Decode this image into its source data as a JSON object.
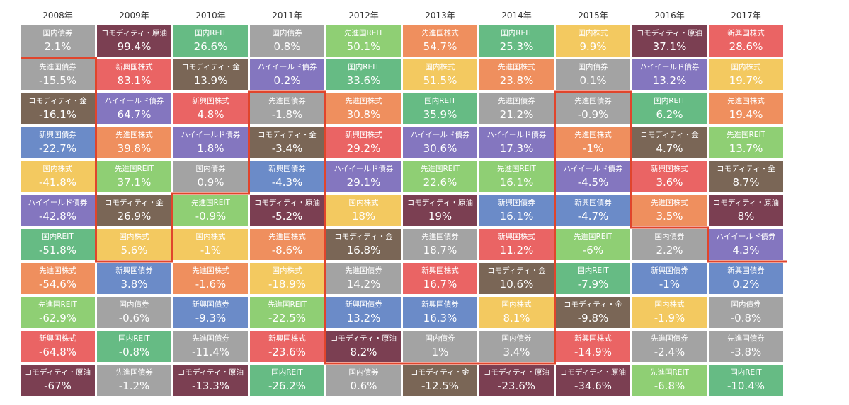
{
  "chart_data": {
    "type": "table",
    "years": [
      "2008年",
      "2009年",
      "2010年",
      "2011年",
      "2012年",
      "2013年",
      "2014年",
      "2015年",
      "2016年",
      "2017年"
    ],
    "asset_colors": {
      "国内債券": "#a3a3a3",
      "先進国債券": "#a3a3a3",
      "コモディティ・原油": "#7b3f52",
      "コモディティ・金": "#7a6656",
      "国内REIT": "#66bb84",
      "先進国REIT": "#8fcf74",
      "先進国株式": "#ef8f5e",
      "国内株式": "#f3c960",
      "新興国株式": "#ea6464",
      "新興国債券": "#6b8bc8",
      "ハイイールド債券": "#8476bf"
    },
    "columns": [
      [
        {
          "asset": "国内債券",
          "value": "2.1%"
        },
        {
          "asset": "先進国債券",
          "value": "-15.5%"
        },
        {
          "asset": "コモディティ・金",
          "value": "-16.1%"
        },
        {
          "asset": "新興国債券",
          "value": "-22.7%"
        },
        {
          "asset": "国内株式",
          "value": "-41.8%"
        },
        {
          "asset": "ハイイールド債券",
          "value": "-42.8%"
        },
        {
          "asset": "国内REIT",
          "value": "-51.8%"
        },
        {
          "asset": "先進国株式",
          "value": "-54.6%"
        },
        {
          "asset": "先進国REIT",
          "value": "-62.9%"
        },
        {
          "asset": "新興国株式",
          "value": "-64.8%"
        },
        {
          "asset": "コモディティ・原油",
          "value": "-67%"
        }
      ],
      [
        {
          "asset": "コモディティ・原油",
          "value": "99.4%"
        },
        {
          "asset": "新興国株式",
          "value": "83.1%"
        },
        {
          "asset": "ハイイールド債券",
          "value": "64.7%"
        },
        {
          "asset": "先進国株式",
          "value": "39.8%"
        },
        {
          "asset": "先進国REIT",
          "value": "37.1%"
        },
        {
          "asset": "コモディティ・金",
          "value": "26.9%"
        },
        {
          "asset": "国内株式",
          "value": "5.6%"
        },
        {
          "asset": "新興国債券",
          "value": "3.8%"
        },
        {
          "asset": "国内債券",
          "value": "-0.6%"
        },
        {
          "asset": "国内REIT",
          "value": "-0.8%"
        },
        {
          "asset": "先進国債券",
          "value": "-1.2%"
        }
      ],
      [
        {
          "asset": "国内REIT",
          "value": "26.6%"
        },
        {
          "asset": "コモディティ・金",
          "value": "13.9%"
        },
        {
          "asset": "新興国株式",
          "value": "4.8%"
        },
        {
          "asset": "ハイイールド債券",
          "value": "1.8%"
        },
        {
          "asset": "国内債券",
          "value": "0.9%"
        },
        {
          "asset": "先進国REIT",
          "value": "-0.9%"
        },
        {
          "asset": "国内株式",
          "value": "-1%"
        },
        {
          "asset": "先進国株式",
          "value": "-1.6%"
        },
        {
          "asset": "新興国債券",
          "value": "-9.3%"
        },
        {
          "asset": "先進国債券",
          "value": "-11.4%"
        },
        {
          "asset": "コモディティ・原油",
          "value": "-13.3%"
        }
      ],
      [
        {
          "asset": "国内債券",
          "value": "0.8%"
        },
        {
          "asset": "ハイイールド債券",
          "value": "0.2%"
        },
        {
          "asset": "先進国債券",
          "value": "-1.8%"
        },
        {
          "asset": "コモディティ・金",
          "value": "-3.4%"
        },
        {
          "asset": "新興国債券",
          "value": "-4.3%"
        },
        {
          "asset": "コモディティ・原油",
          "value": "-5.2%"
        },
        {
          "asset": "先進国株式",
          "value": "-8.6%"
        },
        {
          "asset": "国内株式",
          "value": "-18.9%"
        },
        {
          "asset": "先進国REIT",
          "value": "-22.5%"
        },
        {
          "asset": "新興国株式",
          "value": "-23.6%"
        },
        {
          "asset": "国内REIT",
          "value": "-26.2%"
        }
      ],
      [
        {
          "asset": "先進国REIT",
          "value": "50.1%"
        },
        {
          "asset": "国内REIT",
          "value": "33.6%"
        },
        {
          "asset": "先進国株式",
          "value": "30.8%"
        },
        {
          "asset": "新興国株式",
          "value": "29.2%"
        },
        {
          "asset": "ハイイールド債券",
          "value": "29.1%"
        },
        {
          "asset": "国内株式",
          "value": "18%"
        },
        {
          "asset": "コモディティ・金",
          "value": "16.8%"
        },
        {
          "asset": "先進国債券",
          "value": "14.2%"
        },
        {
          "asset": "新興国債券",
          "value": "13.2%"
        },
        {
          "asset": "コモディティ・原油",
          "value": "8.2%"
        },
        {
          "asset": "国内債券",
          "value": "0.6%"
        }
      ],
      [
        {
          "asset": "先進国株式",
          "value": "54.7%"
        },
        {
          "asset": "国内株式",
          "value": "51.5%"
        },
        {
          "asset": "国内REIT",
          "value": "35.9%"
        },
        {
          "asset": "ハイイールド債券",
          "value": "30.6%"
        },
        {
          "asset": "先進国REIT",
          "value": "22.6%"
        },
        {
          "asset": "コモディティ・原油",
          "value": "19%"
        },
        {
          "asset": "先進国債券",
          "value": "18.7%"
        },
        {
          "asset": "新興国株式",
          "value": "16.7%"
        },
        {
          "asset": "新興国債券",
          "value": "16.3%"
        },
        {
          "asset": "国内債券",
          "value": "1%"
        },
        {
          "asset": "コモディティ・金",
          "value": "-12.5%"
        }
      ],
      [
        {
          "asset": "国内REIT",
          "value": "25.3%"
        },
        {
          "asset": "先進国株式",
          "value": "23.8%"
        },
        {
          "asset": "先進国債券",
          "value": "21.2%"
        },
        {
          "asset": "ハイイールド債券",
          "value": "17.3%"
        },
        {
          "asset": "先進国REIT",
          "value": "16.1%"
        },
        {
          "asset": "新興国債券",
          "value": "16.1%"
        },
        {
          "asset": "新興国株式",
          "value": "11.2%"
        },
        {
          "asset": "コモディティ・金",
          "value": "10.6%"
        },
        {
          "asset": "国内株式",
          "value": "8.1%"
        },
        {
          "asset": "国内債券",
          "value": "3.4%"
        },
        {
          "asset": "コモディティ・原油",
          "value": "-23.6%"
        }
      ],
      [
        {
          "asset": "国内株式",
          "value": "9.9%"
        },
        {
          "asset": "国内債券",
          "value": "0.1%"
        },
        {
          "asset": "先進国債券",
          "value": "-0.9%"
        },
        {
          "asset": "先進国株式",
          "value": "-1%"
        },
        {
          "asset": "ハイイールド債券",
          "value": "-4.5%"
        },
        {
          "asset": "新興国債券",
          "value": "-4.7%"
        },
        {
          "asset": "先進国REIT",
          "value": "-6%"
        },
        {
          "asset": "国内REIT",
          "value": "-7.9%"
        },
        {
          "asset": "コモディティ・金",
          "value": "-9.8%"
        },
        {
          "asset": "新興国株式",
          "value": "-14.9%"
        },
        {
          "asset": "コモディティ・原油",
          "value": "-34.6%"
        }
      ],
      [
        {
          "asset": "コモディティ・原油",
          "value": "37.1%"
        },
        {
          "asset": "ハイイールド債券",
          "value": "13.2%"
        },
        {
          "asset": "国内REIT",
          "value": "6.2%"
        },
        {
          "asset": "コモディティ・金",
          "value": "4.7%"
        },
        {
          "asset": "新興国株式",
          "value": "3.6%"
        },
        {
          "asset": "先進国株式",
          "value": "3.5%"
        },
        {
          "asset": "国内債券",
          "value": "2.2%"
        },
        {
          "asset": "新興国債券",
          "value": "-1%"
        },
        {
          "asset": "国内株式",
          "value": "-1.9%"
        },
        {
          "asset": "先進国債券",
          "value": "-2.4%"
        },
        {
          "asset": "先進国REIT",
          "value": "-6.8%"
        }
      ],
      [
        {
          "asset": "新興国株式",
          "value": "28.6%"
        },
        {
          "asset": "国内株式",
          "value": "19.7%"
        },
        {
          "asset": "先進国株式",
          "value": "19.4%"
        },
        {
          "asset": "先進国REIT",
          "value": "13.7%"
        },
        {
          "asset": "コモディティ・金",
          "value": "8.7%"
        },
        {
          "asset": "コモディティ・原油",
          "value": "8%"
        },
        {
          "asset": "ハイイールド債券",
          "value": "4.3%"
        },
        {
          "asset": "新興国債券",
          "value": "0.2%"
        },
        {
          "asset": "国内債券",
          "value": "-0.8%"
        },
        {
          "asset": "先進国債券",
          "value": "-3.8%"
        },
        {
          "asset": "国内REIT",
          "value": "-10.4%"
        }
      ]
    ],
    "highlight_color": "#e0452c",
    "highlight_path": [
      [
        0,
        1
      ],
      [
        1,
        1
      ],
      [
        1,
        7
      ],
      [
        2,
        7
      ],
      [
        2,
        5
      ],
      [
        3,
        5
      ],
      [
        3,
        2
      ],
      [
        4,
        2
      ],
      [
        4,
        10
      ],
      [
        5,
        10
      ],
      [
        5,
        10
      ],
      [
        6,
        10
      ],
      [
        7,
        10
      ],
      [
        7,
        2
      ],
      [
        8,
        2
      ],
      [
        8,
        6
      ],
      [
        9,
        6
      ],
      [
        9,
        7
      ],
      [
        10,
        7
      ]
    ]
  }
}
